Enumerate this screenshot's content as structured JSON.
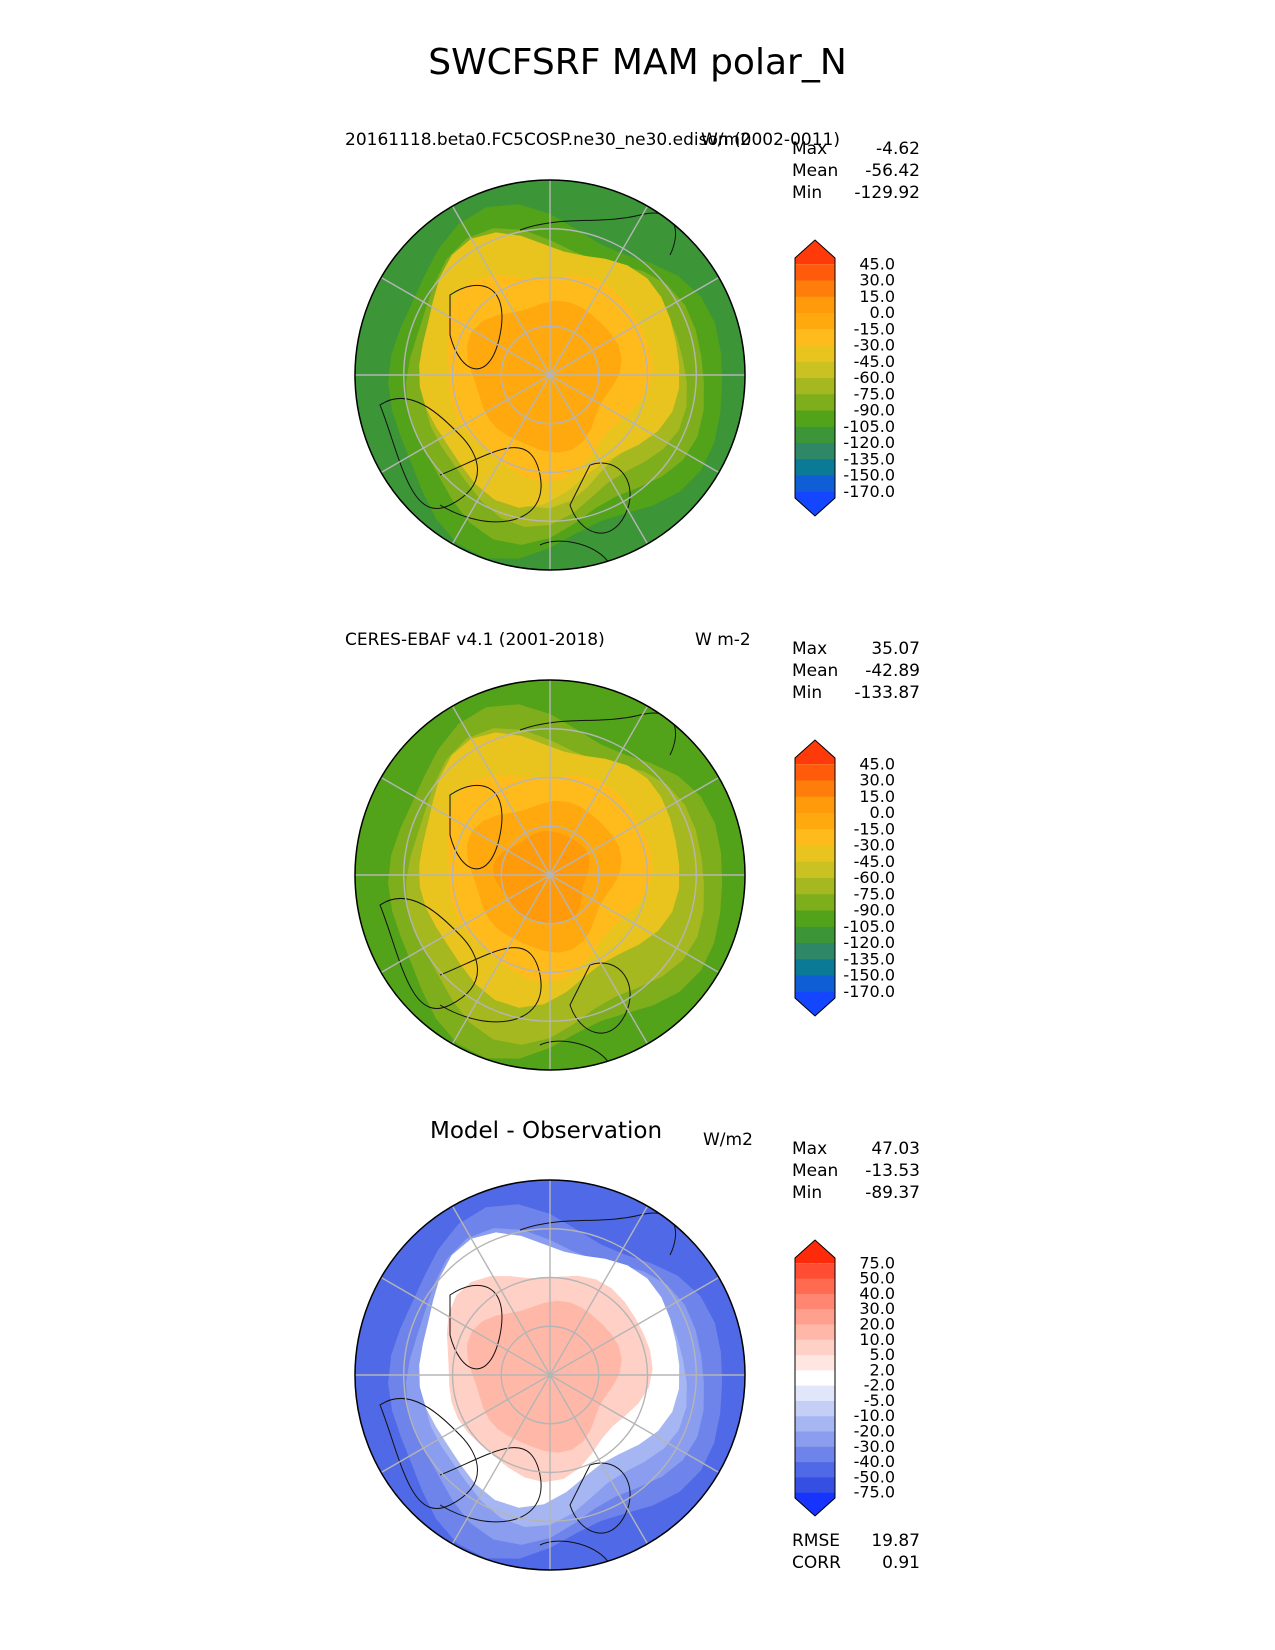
{
  "figure": {
    "title": "SWCFSRF MAM polar_N"
  },
  "panels": [
    {
      "id": "test",
      "title": "20161118.beta0.FC5COSP.ne30_ne30.edison (0002-0011)",
      "units": "W/m2",
      "stats": [
        {
          "label": "Max",
          "value": "-4.62"
        },
        {
          "label": "Mean",
          "value": "-56.42"
        },
        {
          "label": "Min",
          "value": "-129.92"
        }
      ],
      "colorbar": {
        "levels": [
          "45.0",
          "30.0",
          "15.0",
          "0.0",
          "-15.0",
          "-30.0",
          "-45.0",
          "-60.0",
          "-75.0",
          "-90.0",
          "-105.0",
          "-120.0",
          "-135.0",
          "-150.0",
          "-170.0"
        ],
        "colors": [
          "#ff3a0a",
          "#ff5b0a",
          "#ff7d0a",
          "#ff9a0a",
          "#ffa90f",
          "#ffbb1c",
          "#e9c41f",
          "#c9c222",
          "#a6b81f",
          "#7fae1c",
          "#52a31a",
          "#3c9638",
          "#2e8766",
          "#0a7a97",
          "#0f5ed6",
          "#1445ff"
        ]
      },
      "map": {
        "ocean_colors": [
          "#c9c222",
          "#a6b81f",
          "#7fae1c",
          "#52a31a",
          "#3c9638"
        ],
        "inner_colors": [
          "#e9c41f",
          "#ffbb1c",
          "#ffa90f"
        ]
      }
    },
    {
      "id": "reference",
      "title": "CERES-EBAF v4.1 (2001-2018)",
      "units": "W m-2",
      "stats": [
        {
          "label": "Max",
          "value": "35.07"
        },
        {
          "label": "Mean",
          "value": "-42.89"
        },
        {
          "label": "Min",
          "value": "-133.87"
        }
      ],
      "colorbar": {
        "levels": [
          "45.0",
          "30.0",
          "15.0",
          "0.0",
          "-15.0",
          "-30.0",
          "-45.0",
          "-60.0",
          "-75.0",
          "-90.0",
          "-105.0",
          "-120.0",
          "-135.0",
          "-150.0",
          "-170.0"
        ],
        "colors": [
          "#ff3a0a",
          "#ff5b0a",
          "#ff7d0a",
          "#ff9a0a",
          "#ffa90f",
          "#ffbb1c",
          "#e9c41f",
          "#c9c222",
          "#a6b81f",
          "#7fae1c",
          "#52a31a",
          "#3c9638",
          "#2e8766",
          "#0a7a97",
          "#0f5ed6",
          "#1445ff"
        ]
      },
      "map": {
        "ocean_colors": [
          "#a6b81f",
          "#7fae1c",
          "#52a31a"
        ],
        "inner_colors": [
          "#e9c41f",
          "#ffbb1c",
          "#ffa90f",
          "#ff9a0a"
        ]
      }
    },
    {
      "id": "difference",
      "title": "Model - Observation",
      "units": "W/m2",
      "stats": [
        {
          "label": "Max",
          "value": "47.03"
        },
        {
          "label": "Mean",
          "value": "-13.53"
        },
        {
          "label": "Min",
          "value": "-89.37"
        }
      ],
      "colorbar": {
        "levels": [
          "75.0",
          "50.0",
          "40.0",
          "30.0",
          "20.0",
          "10.0",
          "5.0",
          "2.0",
          "-2.0",
          "-5.0",
          "-10.0",
          "-20.0",
          "-30.0",
          "-40.0",
          "-50.0",
          "-75.0"
        ],
        "colors": [
          "#ff2a0a",
          "#ff4d33",
          "#ff6a50",
          "#ff8670",
          "#ffa08e",
          "#ffb8a8",
          "#ffd0c6",
          "#ffe6e0",
          "#ffffff",
          "#e1e6fb",
          "#c5cff6",
          "#a6b6f2",
          "#8a9dee",
          "#6f84ea",
          "#5069e6",
          "#344fe2",
          "#1633ff"
        ]
      },
      "map": {
        "ocean_colors": [
          "#a6b6f2",
          "#8a9dee",
          "#6f84ea",
          "#5069e6"
        ],
        "inner_colors": [
          "#ffffff",
          "#ffd0c6",
          "#ffb8a8"
        ]
      },
      "metrics": [
        {
          "label": "RMSE",
          "value": "19.87"
        },
        {
          "label": "CORR",
          "value": "0.91"
        }
      ]
    }
  ]
}
